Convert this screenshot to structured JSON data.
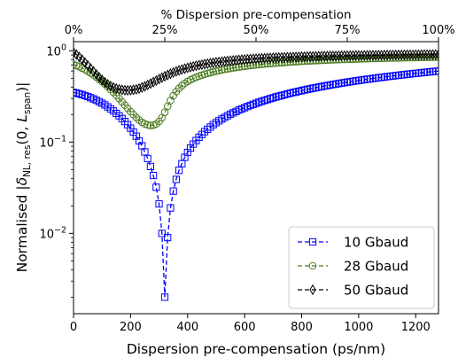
{
  "chart_data": {
    "type": "line",
    "xlabel": "Dispersion pre-compensation (ps/nm)",
    "ylabel_prefix": "Normalised |",
    "ylabel_delta": "δ",
    "ylabel_sub": "NL, res",
    "ylabel_mid": "(0, ",
    "ylabel_L": "L",
    "ylabel_Lsub": "span",
    "ylabel_suffix": ")|",
    "top_xlabel": "% Dispersion pre-compensation",
    "xlim": [
      0,
      1280
    ],
    "ylim_log10": [
      -2.88,
      0.1
    ],
    "yscale": "log",
    "x_ticks": [
      0,
      200,
      400,
      600,
      800,
      1000,
      1200
    ],
    "x_tick_labels": [
      "0",
      "200",
      "400",
      "600",
      "800",
      "1000",
      "1200"
    ],
    "y_ticks_log10": [
      -2,
      -1,
      0
    ],
    "top_ticks_x": [
      0,
      320,
      640,
      960,
      1280
    ],
    "top_tick_labels": [
      "0%",
      "25%",
      "50%",
      "75%",
      "100%"
    ],
    "legend_placement": "lower right",
    "grid": false,
    "series": [
      {
        "name": "10 Gbaud",
        "color": "#0000ff",
        "marker": "square",
        "x_step": 10,
        "values": [
          0.35,
          0.344,
          0.338,
          0.331,
          0.323,
          0.315,
          0.306,
          0.297,
          0.287,
          0.277,
          0.266,
          0.255,
          0.243,
          0.231,
          0.219,
          0.206,
          0.194,
          0.181,
          0.168,
          0.155,
          0.142,
          0.129,
          0.116,
          0.103,
          0.091,
          0.078,
          0.066,
          0.054,
          0.043,
          0.032,
          0.021,
          0.01,
          0.002,
          0.009,
          0.019,
          0.029,
          0.039,
          0.049,
          0.058,
          0.068,
          0.077,
          0.086,
          0.095,
          0.104,
          0.113,
          0.121,
          0.13,
          0.138,
          0.146,
          0.155,
          0.163,
          0.171,
          0.179,
          0.186,
          0.194,
          0.202,
          0.209,
          0.216,
          0.224,
          0.231,
          0.238,
          0.245,
          0.252,
          0.259,
          0.266,
          0.273,
          0.279,
          0.286,
          0.292,
          0.299,
          0.305,
          0.312,
          0.318,
          0.324,
          0.33,
          0.337,
          0.343,
          0.349,
          0.354,
          0.36,
          0.366,
          0.372,
          0.378,
          0.383,
          0.389,
          0.394,
          0.4,
          0.405,
          0.411,
          0.416,
          0.422,
          0.427,
          0.432,
          0.437,
          0.443,
          0.448,
          0.453,
          0.458,
          0.463,
          0.468,
          0.473,
          0.478,
          0.483,
          0.488,
          0.492,
          0.497,
          0.502,
          0.507,
          0.511,
          0.516,
          0.521,
          0.525,
          0.53,
          0.535,
          0.539,
          0.544,
          0.548,
          0.553,
          0.557,
          0.562,
          0.566,
          0.57,
          0.575,
          0.579,
          0.583,
          0.588,
          0.592,
          0.596,
          0.6
        ]
      },
      {
        "name": "28 Gbaud",
        "color": "#4a7a1e",
        "marker": "circle",
        "x_step": 10,
        "values": [
          0.71,
          0.69,
          0.668,
          0.645,
          0.621,
          0.596,
          0.57,
          0.543,
          0.516,
          0.488,
          0.46,
          0.432,
          0.404,
          0.377,
          0.35,
          0.324,
          0.299,
          0.276,
          0.254,
          0.234,
          0.216,
          0.2,
          0.186,
          0.174,
          0.165,
          0.158,
          0.154,
          0.152,
          0.153,
          0.158,
          0.168,
          0.185,
          0.212,
          0.247,
          0.285,
          0.322,
          0.357,
          0.388,
          0.415,
          0.439,
          0.461,
          0.48,
          0.497,
          0.513,
          0.528,
          0.541,
          0.554,
          0.566,
          0.577,
          0.588,
          0.598,
          0.608,
          0.617,
          0.626,
          0.634,
          0.642,
          0.65,
          0.657,
          0.664,
          0.671,
          0.677,
          0.683,
          0.689,
          0.695,
          0.7,
          0.706,
          0.711,
          0.716,
          0.721,
          0.725,
          0.73,
          0.734,
          0.738,
          0.742,
          0.746,
          0.75,
          0.753,
          0.757,
          0.76,
          0.764,
          0.767,
          0.77,
          0.773,
          0.776,
          0.779,
          0.782,
          0.784,
          0.787,
          0.789,
          0.792,
          0.794,
          0.797,
          0.799,
          0.801,
          0.803,
          0.805,
          0.807,
          0.809,
          0.811,
          0.813,
          0.815,
          0.817,
          0.819,
          0.82,
          0.822,
          0.824,
          0.825,
          0.827,
          0.828,
          0.83,
          0.831,
          0.833,
          0.834,
          0.836,
          0.837,
          0.838,
          0.84,
          0.841,
          0.842,
          0.843,
          0.844,
          0.846,
          0.847,
          0.848,
          0.849,
          0.85,
          0.851,
          0.852,
          0.853
        ]
      },
      {
        "name": "50 Gbaud",
        "color": "#000000",
        "marker": "thin_diamond",
        "x_step": 10,
        "values": [
          0.96,
          0.91,
          0.855,
          0.8,
          0.745,
          0.692,
          0.641,
          0.594,
          0.551,
          0.513,
          0.48,
          0.452,
          0.429,
          0.41,
          0.396,
          0.385,
          0.378,
          0.373,
          0.37,
          0.369,
          0.37,
          0.373,
          0.378,
          0.386,
          0.396,
          0.408,
          0.422,
          0.437,
          0.454,
          0.472,
          0.49,
          0.508,
          0.526,
          0.544,
          0.561,
          0.578,
          0.594,
          0.609,
          0.623,
          0.637,
          0.65,
          0.662,
          0.674,
          0.685,
          0.695,
          0.705,
          0.714,
          0.723,
          0.731,
          0.739,
          0.747,
          0.754,
          0.76,
          0.767,
          0.773,
          0.779,
          0.784,
          0.789,
          0.794,
          0.799,
          0.803,
          0.808,
          0.812,
          0.816,
          0.819,
          0.823,
          0.826,
          0.829,
          0.833,
          0.836,
          0.838,
          0.841,
          0.844,
          0.846,
          0.849,
          0.851,
          0.853,
          0.855,
          0.857,
          0.859,
          0.861,
          0.863,
          0.865,
          0.867,
          0.868,
          0.87,
          0.872,
          0.873,
          0.875,
          0.876,
          0.878,
          0.879,
          0.88,
          0.882,
          0.883,
          0.884,
          0.885,
          0.886,
          0.887,
          0.888,
          0.889,
          0.89,
          0.891,
          0.892,
          0.893,
          0.894,
          0.895,
          0.896,
          0.897,
          0.898,
          0.899,
          0.899,
          0.9,
          0.901,
          0.902,
          0.902,
          0.903,
          0.904,
          0.904,
          0.905,
          0.906,
          0.906,
          0.907,
          0.908,
          0.908,
          0.909,
          0.909,
          0.91,
          0.91
        ]
      }
    ]
  }
}
